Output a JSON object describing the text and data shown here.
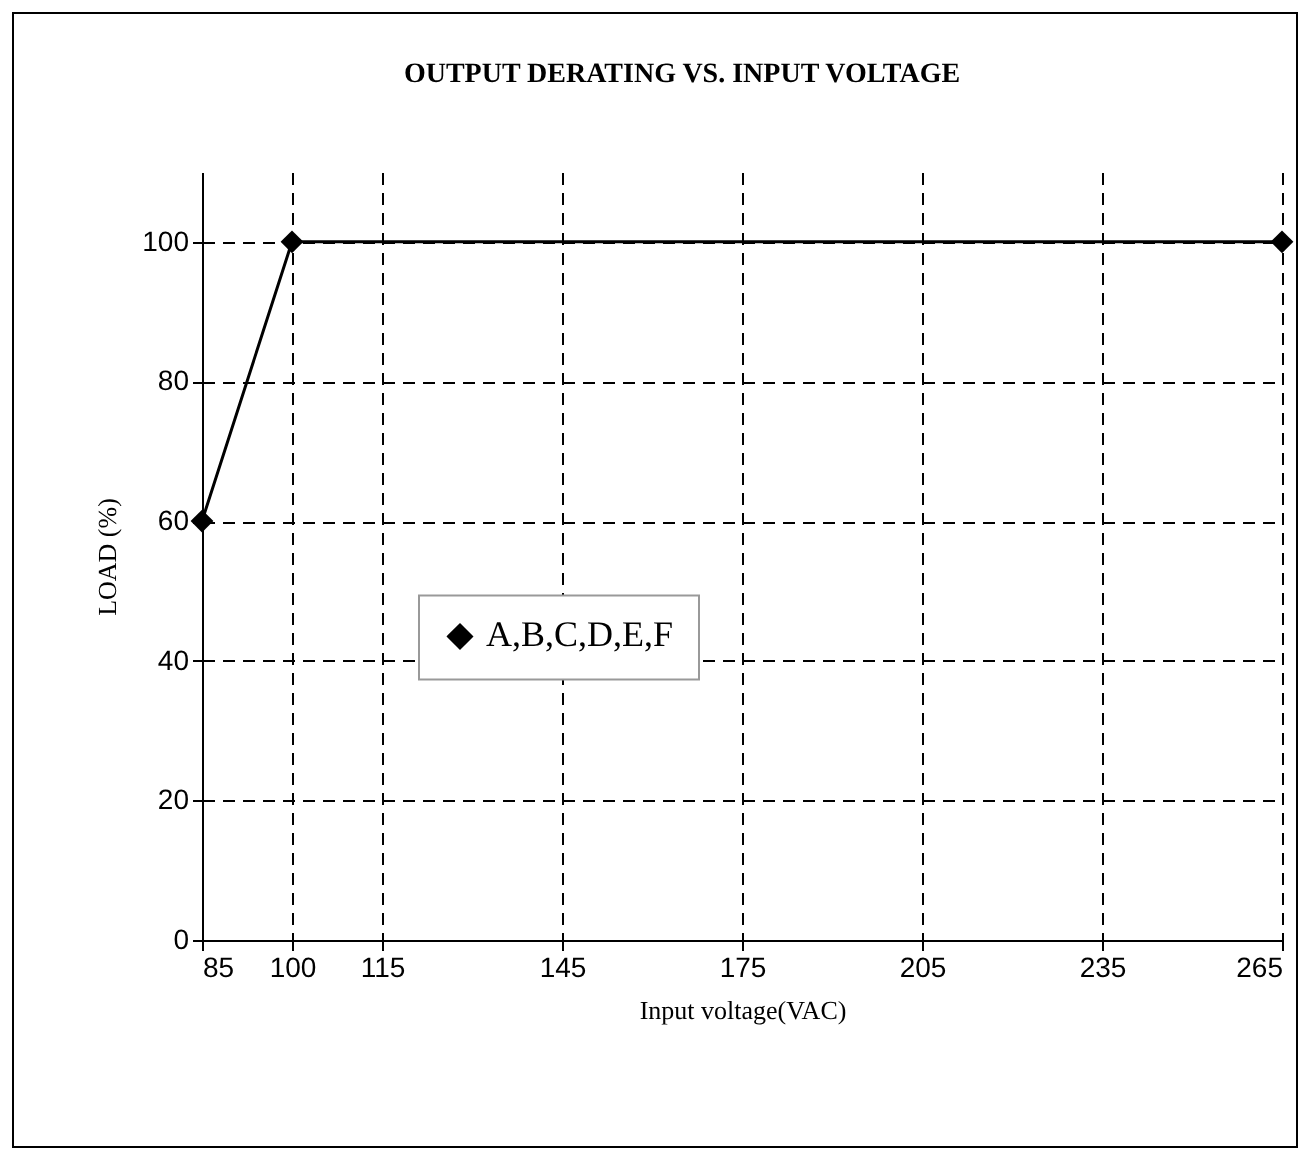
{
  "chart_data": {
    "type": "line",
    "title": "OUTPUT DERATING VS. INPUT VOLTAGE",
    "xlabel": "Input voltage(VAC)",
    "ylabel": "LOAD (%)",
    "x": [
      85,
      100,
      265
    ],
    "series": [
      {
        "name": "A,B,C,D,E,F",
        "color": "#000000",
        "values": [
          60,
          100,
          100
        ]
      }
    ],
    "xlim": [
      85,
      265
    ],
    "xticks": [
      85,
      100,
      115,
      145,
      175,
      205,
      235,
      265
    ],
    "ylim": [
      0,
      110
    ],
    "yticks": [
      0,
      20,
      40,
      60,
      80,
      100
    ],
    "grid": true,
    "legend": "left",
    "marker": "diamond",
    "line_style": "solid"
  }
}
